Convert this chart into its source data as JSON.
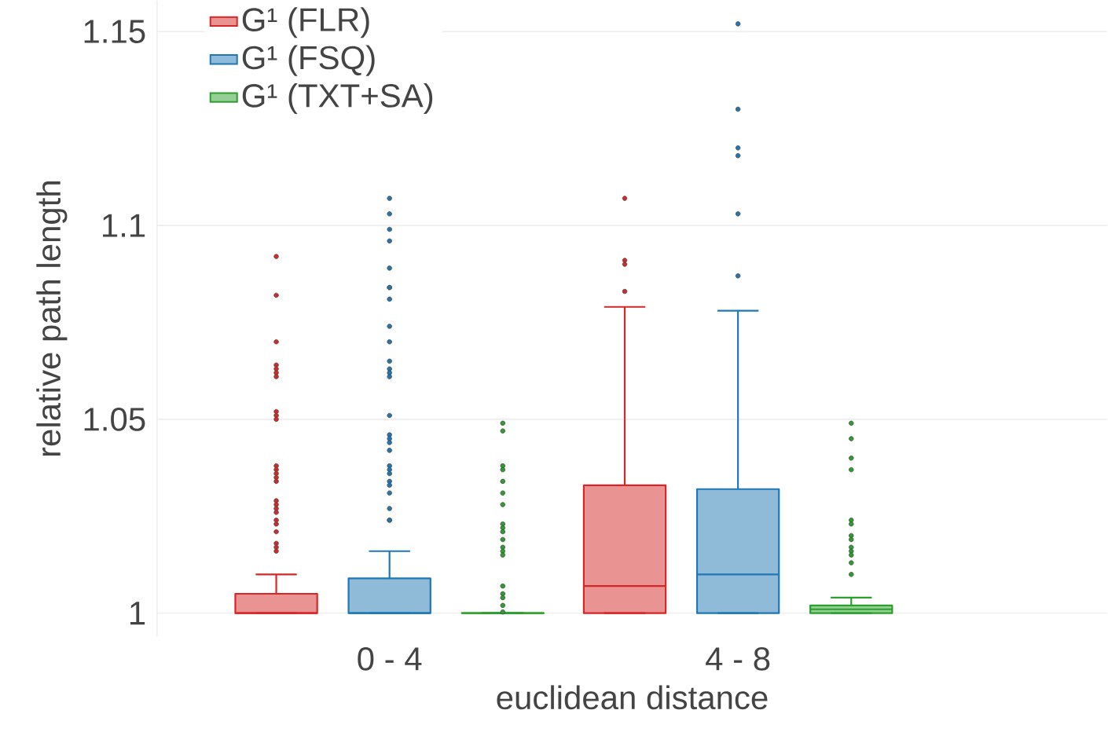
{
  "chart_data": {
    "type": "box",
    "xlabel": "euclidean distance",
    "ylabel": "relative path length",
    "categories": [
      "0 - 4",
      "4 - 8"
    ],
    "ylim": [
      0.994,
      1.158
    ],
    "yticks": [
      1,
      1.05,
      1.1,
      1.15
    ],
    "grid": "y",
    "legend": "top left",
    "series": [
      {
        "name": "G¹ (FLR)",
        "color": "#d62728",
        "boxes": [
          {
            "low": 1,
            "q1": 1,
            "median": 1,
            "q3": 1.005,
            "high": 1.01,
            "outliers": [
              1.092,
              1.082,
              1.07,
              1.064,
              1.063,
              1.062,
              1.061,
              1.052,
              1.051,
              1.05,
              1.038,
              1.037,
              1.036,
              1.035,
              1.034,
              1.029,
              1.028,
              1.027,
              1.026,
              1.024,
              1.023,
              1.021,
              1.018,
              1.017,
              1.016
            ]
          },
          {
            "low": 1,
            "q1": 1,
            "median": 1.007,
            "q3": 1.033,
            "high": 1.079,
            "outliers": [
              1.107,
              1.091,
              1.09,
              1.083
            ]
          }
        ]
      },
      {
        "name": "G¹ (FSQ)",
        "color": "#1f77b4",
        "boxes": [
          {
            "low": 1,
            "q1": 1,
            "median": 1,
            "q3": 1.009,
            "high": 1.016,
            "outliers": [
              1.107,
              1.103,
              1.099,
              1.096,
              1.089,
              1.084,
              1.084,
              1.081,
              1.074,
              1.07,
              1.065,
              1.063,
              1.062,
              1.061,
              1.051,
              1.046,
              1.045,
              1.044,
              1.042,
              1.038,
              1.037,
              1.036,
              1.034,
              1.033,
              1.031,
              1.027,
              1.024,
              1.024
            ]
          },
          {
            "low": 1,
            "q1": 1,
            "median": 1.01,
            "q3": 1.032,
            "high": 1.078,
            "outliers": [
              1.152,
              1.13,
              1.12,
              1.118,
              1.103,
              1.087
            ]
          }
        ]
      },
      {
        "name": "G¹ (TXT+SA)",
        "color": "#2ca02c",
        "boxes": [
          {
            "low": 1,
            "q1": 1,
            "median": 1,
            "q3": 1,
            "high": 1,
            "outliers": [
              1.049,
              1.047,
              1.038,
              1.037,
              1.034,
              1.031,
              1.028,
              1.023,
              1.022,
              1.021,
              1.019,
              1.017,
              1.016,
              1.015,
              1.007,
              1.005,
              1.004,
              1.002,
              1.0003
            ]
          },
          {
            "low": 1,
            "q1": 1,
            "median": 1.001,
            "q3": 1.002,
            "high": 1.004,
            "outliers": [
              1.049,
              1.045,
              1.04,
              1.037,
              1.024,
              1.023,
              1.02,
              1.019,
              1.017,
              1.016,
              1.015,
              1.013,
              1.01
            ]
          }
        ]
      }
    ]
  }
}
